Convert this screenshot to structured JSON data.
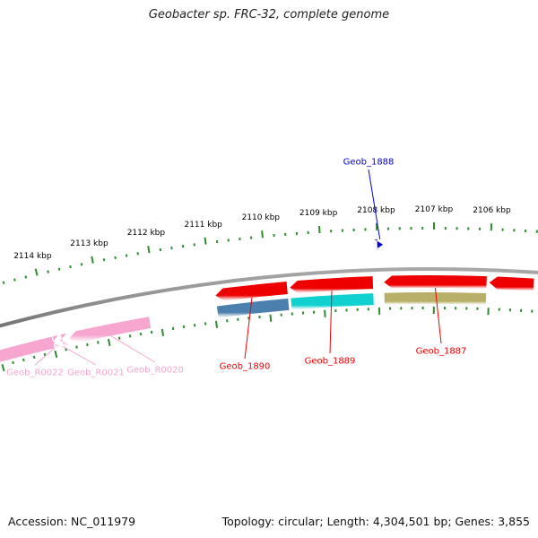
{
  "title": "Geobacter sp. FRC-32, complete genome",
  "footer": {
    "accession": "Accession: NC_011979",
    "summary": "Topology: circular; Length: 4,304,501 bp; Genes: 3,855"
  },
  "colors": {
    "backbone": "#8a8a8a",
    "ticks": "#2e8b2e",
    "red": "#ee0000",
    "rna_pink": "#f7a6cf",
    "steelblue": "#4a7fae",
    "cyan": "#11d0d0",
    "olive": "#b8b068",
    "blue": "#0000dd"
  },
  "scale": {
    "labels": [
      {
        "text": "2114 kbp",
        "kbp": 2114
      },
      {
        "text": "2113 kbp",
        "kbp": 2113
      },
      {
        "text": "2112 kbp",
        "kbp": 2112
      },
      {
        "text": "2111 kbp",
        "kbp": 2111
      },
      {
        "text": "2110 kbp",
        "kbp": 2110
      },
      {
        "text": "2109 kbp",
        "kbp": 2109
      },
      {
        "text": "2108 kbp",
        "kbp": 2108
      },
      {
        "text": "2107 kbp",
        "kbp": 2107
      },
      {
        "text": "2106 kbp",
        "kbp": 2106
      }
    ]
  },
  "features": [
    {
      "label": "Geob_1888",
      "start": 2108.0,
      "end": 2107.9,
      "color": "blue",
      "track": "top",
      "strand": "+"
    },
    {
      "label": "Geob_1890",
      "start": 2110.95,
      "end": 2109.65,
      "color": "red",
      "track": "forward",
      "strand": "-"
    },
    {
      "label": "Geob_1889",
      "start": 2109.6,
      "end": 2108.1,
      "color": "red",
      "track": "forward",
      "strand": "-"
    },
    {
      "label": "Geob_1887",
      "start": 2107.9,
      "end": 2106.05,
      "color": "red",
      "track": "forward",
      "strand": "-"
    },
    {
      "label": "",
      "start": 2106.0,
      "end": 2105.2,
      "color": "red",
      "track": "forward",
      "strand": "-"
    },
    {
      "label": "",
      "start": 2110.95,
      "end": 2109.65,
      "color": "steelblue",
      "track": "reverse",
      "strand": "none"
    },
    {
      "label": "",
      "start": 2109.6,
      "end": 2108.1,
      "color": "cyan",
      "track": "reverse",
      "strand": "none"
    },
    {
      "label": "",
      "start": 2107.9,
      "end": 2106.05,
      "color": "olive",
      "track": "reverse",
      "strand": "none"
    },
    {
      "label": "",
      "start": 2115.5,
      "end": 2114.0,
      "color": "rna_pink",
      "track": "reverse",
      "strand": "none"
    },
    {
      "label": "Geob_R0022",
      "start": 2114.02,
      "end": 2113.98,
      "color": "rna_pink",
      "track": "reverse",
      "strand": "-"
    },
    {
      "label": "Geob_R0021",
      "start": 2113.87,
      "end": 2113.83,
      "color": "rna_pink",
      "track": "reverse",
      "strand": "-"
    },
    {
      "label": "Geob_R0020",
      "start": 2113.7,
      "end": 2112.2,
      "color": "rna_pink",
      "track": "reverse",
      "strand": "-"
    }
  ],
  "feature_labels": [
    {
      "text": "Geob_1888",
      "color": "blue"
    },
    {
      "text": "Geob_1890",
      "color": "red"
    },
    {
      "text": "Geob_1889",
      "color": "red"
    },
    {
      "text": "Geob_1887",
      "color": "red"
    },
    {
      "text": "Geob_R0022",
      "color": "rna_pink"
    },
    {
      "text": "Geob_R0021",
      "color": "rna_pink"
    },
    {
      "text": "Geob_R0020",
      "color": "rna_pink"
    }
  ]
}
